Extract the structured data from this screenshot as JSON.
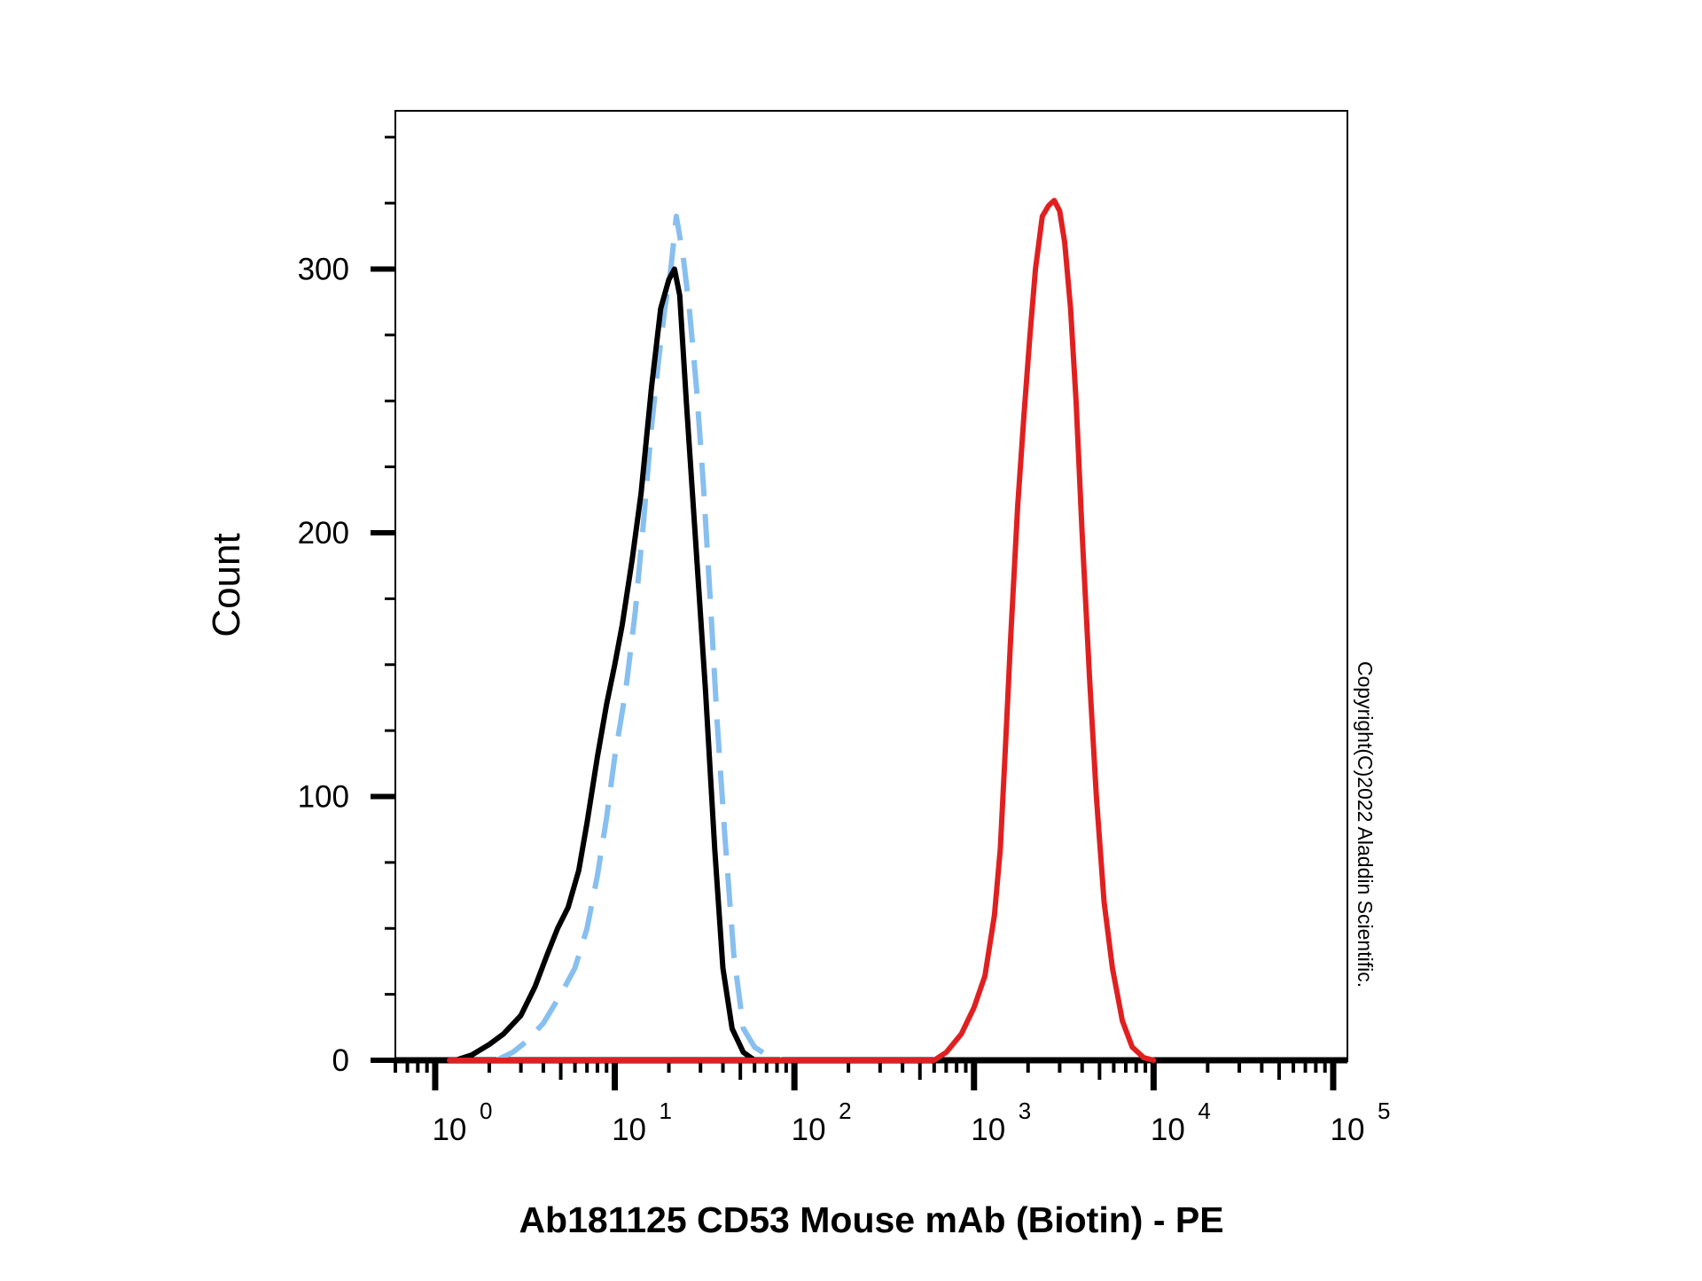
{
  "chart_data": {
    "type": "line",
    "title": "",
    "xlabel": "Ab181125 CD53 Mouse mAb (Biotin) - PE",
    "ylabel": "Count",
    "x_scale": "log",
    "xlim": [
      0.6,
      120000
    ],
    "ylim": [
      0,
      360
    ],
    "grid": false,
    "legend": "none",
    "y_ticks": [
      {
        "value": 0,
        "label": "0"
      },
      {
        "value": 100,
        "label": "100"
      },
      {
        "value": 200,
        "label": "200"
      },
      {
        "value": 300,
        "label": "300"
      }
    ],
    "x_ticks": [
      {
        "value": 1,
        "base": "10",
        "exp": "0"
      },
      {
        "value": 10,
        "base": "10",
        "exp": "1"
      },
      {
        "value": 100,
        "base": "10",
        "exp": "2"
      },
      {
        "value": 1000,
        "base": "10",
        "exp": "3"
      },
      {
        "value": 10000,
        "base": "10",
        "exp": "4"
      },
      {
        "value": 100000,
        "base": "10",
        "exp": "5"
      }
    ],
    "series": [
      {
        "color": "#000000",
        "dash": "solid",
        "points": [
          [
            1.3,
            0
          ],
          [
            1.6,
            2
          ],
          [
            2.0,
            6
          ],
          [
            2.4,
            10
          ],
          [
            3.0,
            17
          ],
          [
            3.6,
            28
          ],
          [
            4.2,
            40
          ],
          [
            4.8,
            50
          ],
          [
            5.5,
            58
          ],
          [
            6.3,
            72
          ],
          [
            7.0,
            90
          ],
          [
            8.0,
            115
          ],
          [
            9.0,
            135
          ],
          [
            10.0,
            150
          ],
          [
            11.0,
            165
          ],
          [
            12.5,
            190
          ],
          [
            14.0,
            215
          ],
          [
            16.0,
            255
          ],
          [
            18.0,
            285
          ],
          [
            20.0,
            296
          ],
          [
            21.5,
            300
          ],
          [
            23.0,
            290
          ],
          [
            25.0,
            250
          ],
          [
            28.0,
            200
          ],
          [
            32.0,
            140
          ],
          [
            36.0,
            80
          ],
          [
            40.0,
            35
          ],
          [
            45.0,
            12
          ],
          [
            52.0,
            3
          ],
          [
            60.0,
            0
          ]
        ]
      },
      {
        "color": "#87BFEF",
        "dash": "dashed",
        "points": [
          [
            2.2,
            0
          ],
          [
            2.7,
            3
          ],
          [
            3.2,
            7
          ],
          [
            4.0,
            14
          ],
          [
            5.0,
            25
          ],
          [
            6.0,
            35
          ],
          [
            7.0,
            50
          ],
          [
            8.0,
            70
          ],
          [
            9.0,
            92
          ],
          [
            10.0,
            115
          ],
          [
            11.5,
            140
          ],
          [
            13.0,
            170
          ],
          [
            14.5,
            205
          ],
          [
            16.0,
            240
          ],
          [
            17.5,
            265
          ],
          [
            19.0,
            285
          ],
          [
            20.5,
            300
          ],
          [
            22.0,
            320
          ],
          [
            24.0,
            305
          ],
          [
            26.0,
            285
          ],
          [
            28.5,
            255
          ],
          [
            31.0,
            220
          ],
          [
            34.0,
            175
          ],
          [
            37.0,
            130
          ],
          [
            41.0,
            85
          ],
          [
            46.0,
            40
          ],
          [
            52.0,
            12
          ],
          [
            60.0,
            5
          ],
          [
            70.0,
            2
          ],
          [
            85.0,
            0
          ]
        ]
      },
      {
        "color": "#E02020",
        "dash": "solid",
        "points": [
          [
            1.2,
            0
          ],
          [
            100,
            0
          ],
          [
            600,
            0
          ],
          [
            700,
            3
          ],
          [
            850,
            10
          ],
          [
            1000,
            20
          ],
          [
            1150,
            32
          ],
          [
            1300,
            55
          ],
          [
            1400,
            80
          ],
          [
            1500,
            120
          ],
          [
            1600,
            160
          ],
          [
            1750,
            210
          ],
          [
            1900,
            245
          ],
          [
            2050,
            275
          ],
          [
            2200,
            300
          ],
          [
            2400,
            320
          ],
          [
            2600,
            324
          ],
          [
            2800,
            326
          ],
          [
            3000,
            322
          ],
          [
            3200,
            310
          ],
          [
            3450,
            285
          ],
          [
            3700,
            250
          ],
          [
            4000,
            200
          ],
          [
            4400,
            145
          ],
          [
            4800,
            100
          ],
          [
            5300,
            60
          ],
          [
            5900,
            35
          ],
          [
            6700,
            15
          ],
          [
            7600,
            5
          ],
          [
            8800,
            1
          ],
          [
            10000,
            0
          ]
        ]
      }
    ]
  },
  "copyright": "Copyright(C)2022 Aladdin Scientific."
}
